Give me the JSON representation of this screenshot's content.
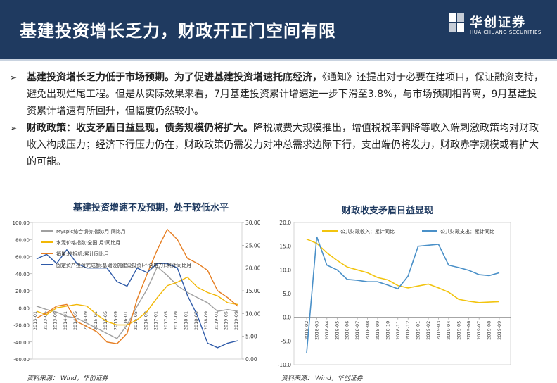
{
  "header": {
    "title": "基建投资增长乏力，财政开正门空间有限",
    "logo_cn": "华创证券",
    "logo_en": "HUA CHUANG SECURITIES"
  },
  "bullets": [
    {
      "marker": "➢",
      "strong": "基建投资增长乏力低于市场预期。为了促进基建投资增速托底经济，",
      "text": "《通知》还提出对于必要在建项目，保证融资支持，避免出现烂尾工程。但是从实际效果来看，7月基建投资累计增速进一步下滑至3.8%，与市场预期相背离，9月基建投资累计增速有所回升，但幅度仍然较小。"
    },
    {
      "marker": "➢",
      "strong": "财政政策：收支矛盾日益显现，债务规模仍将扩大。",
      "text": "降税减费大规模推出，增值税税率调降等收入端刺激政策均对财政收入构成压力；经济下行压力仍在，财政政策仍需发力对冲总需求边际下行，支出端仍将发力，财政赤字规模或有扩大的可能。"
    }
  ],
  "left_chart": {
    "title": "基建投资增速不及预期，处于较低水平",
    "source": "资料来源： Wind，华创证券"
  },
  "right_chart": {
    "title": "财政收支矛盾日益显现",
    "source": "资料来源： Wind，华创证券"
  },
  "chart_data": [
    {
      "type": "line",
      "title": "基建投资增速不及预期，处于较低水平",
      "ylim_left": [
        -60,
        100
      ],
      "ylim_right": [
        0,
        30
      ],
      "yticks_left": [
        "100.00",
        "80.00",
        "60.00",
        "40.00",
        "20.00",
        "0.00",
        "-20.00",
        "-40.00",
        "-60.00"
      ],
      "yticks_right": [
        "30.00",
        "25.00",
        "20.00",
        "15.00",
        "10.00",
        "5.00",
        "0.00"
      ],
      "x": [
        "2013-01",
        "2013-05",
        "2013-09",
        "2014-01",
        "2014-05",
        "2014-09",
        "2015-01",
        "2015-05",
        "2015-09",
        "2016-01",
        "2016-05",
        "2016-09",
        "2017-01",
        "2017-05",
        "2017-09",
        "2018-01",
        "2018-05",
        "2018-09",
        "2019-01",
        "2019-05",
        "2019-09"
      ],
      "series": [
        {
          "name": "Myspic综合钢价指数:月:同比月",
          "axis": "left",
          "color": "#a0a0a0",
          "values": [
            2,
            -2,
            -5,
            -10,
            -12,
            -18,
            -24,
            -30,
            -36,
            -20,
            2,
            22,
            48,
            38,
            26,
            18,
            12,
            6,
            -4,
            -2,
            -4
          ]
        },
        {
          "name": "水泥价格指数:全国:月:同比月",
          "axis": "left",
          "color": "#f2b705",
          "values": [
            -4,
            -8,
            0,
            2,
            4,
            2,
            -8,
            -16,
            -20,
            -20,
            -14,
            -4,
            12,
            26,
            30,
            36,
            24,
            18,
            14,
            6,
            4
          ]
        },
        {
          "name": "销量:挖掘机:累计同比月",
          "axis": "left",
          "color": "#e67e22",
          "values": [
            -12,
            -6,
            2,
            4,
            -16,
            -22,
            -28,
            -40,
            -42,
            -30,
            10,
            40,
            68,
            92,
            80,
            58,
            52,
            44,
            20,
            12,
            2
          ]
        },
        {
          "name": "固定资产投资完成额:基础设施建设投资(不含电力):累计同比月",
          "axis": "right",
          "color": "#2e5aa8",
          "values": [
            22,
            23,
            21,
            24,
            21,
            20,
            20,
            20,
            17,
            16,
            20,
            19,
            21,
            21,
            20,
            14,
            9.5,
            3.5,
            2.5,
            3.5,
            4
          ]
        }
      ]
    },
    {
      "type": "line",
      "title": "财政收支矛盾日益显现",
      "ylim": [
        -10,
        20
      ],
      "yticks": [
        "20.0",
        "15.0",
        "10.0",
        "5.0",
        "0.0",
        "-5.0",
        "-10.0"
      ],
      "x": [
        "2018-02",
        "2018-03",
        "2018-04",
        "2018-05",
        "2018-06",
        "2018-07",
        "2018-08",
        "2018-09",
        "2018-10",
        "2018-11",
        "2018-12",
        "2019-01",
        "2019-02",
        "2019-03",
        "2019-04",
        "2019-05",
        "2019-06",
        "2019-07",
        "2019-08",
        "2019-09"
      ],
      "series": [
        {
          "name": "公共财政收入：累计同比",
          "color": "#f2c40f",
          "values": [
            16.5,
            15.6,
            13.6,
            12.0,
            10.6,
            10.0,
            9.4,
            8.4,
            7.9,
            6.7,
            6.2,
            6.6,
            7.0,
            6.2,
            5.3,
            3.8,
            3.4,
            3.1,
            3.2,
            3.3
          ]
        },
        {
          "name": "公共财政支出：累计同比",
          "color": "#4a90c8",
          "values": [
            -7.5,
            17.0,
            11.0,
            10.0,
            8.0,
            7.8,
            7.5,
            7.5,
            6.8,
            6.0,
            8.7,
            15.0,
            15.2,
            15.4,
            11.0,
            10.5,
            9.9,
            9.0,
            8.8,
            9.4
          ]
        }
      ]
    }
  ]
}
